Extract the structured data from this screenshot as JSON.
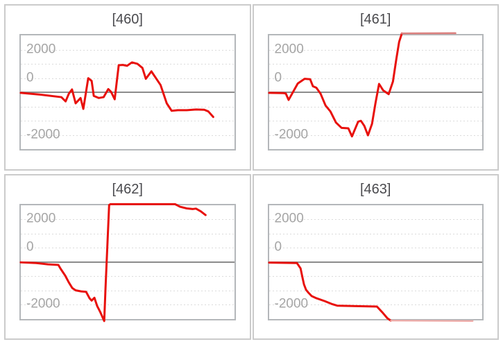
{
  "page": {
    "background": "#ffffff"
  },
  "palette": {
    "series": "#e8100c",
    "series_faded": "#db807e",
    "series_light": "#efaaa7",
    "zero_line": "#8c8c8c",
    "gridline": "#dbdbdb",
    "plot_border": "#b4b7ba",
    "panel_border": "#cbcbcb",
    "tick_label": "#a5a5a5",
    "title": "#4a4a4e"
  },
  "axis": {
    "y_ticks": [
      "2000",
      "0",
      "-2000"
    ],
    "y_tick_values": [
      2000,
      0,
      -2000
    ],
    "tick_line_index": [
      1,
      3,
      7
    ],
    "gridline_count": 7,
    "zero_line_index": 4,
    "y_display_range": [
      -2700,
      2700
    ],
    "grid": "dashed-horizontal",
    "x_labels": "none"
  },
  "chart_data": [
    {
      "type": "line",
      "title": "[460]",
      "y_ticks": [
        2000,
        0,
        -2000
      ],
      "segments": [
        {
          "tone": "main",
          "points": [
            [
              0,
              -30
            ],
            [
              0.09,
              -110
            ],
            [
              0.19,
              -230
            ],
            [
              0.21,
              -430
            ],
            [
              0.225,
              -70
            ],
            [
              0.24,
              130
            ],
            [
              0.257,
              -520
            ],
            [
              0.28,
              -270
            ],
            [
              0.293,
              -780
            ],
            [
              0.316,
              660
            ],
            [
              0.332,
              530
            ],
            [
              0.342,
              -170
            ],
            [
              0.365,
              -270
            ],
            [
              0.388,
              -230
            ],
            [
              0.41,
              150
            ],
            [
              0.423,
              20
            ],
            [
              0.44,
              -330
            ],
            [
              0.459,
              1270
            ],
            [
              0.479,
              1280
            ],
            [
              0.498,
              1240
            ],
            [
              0.521,
              1400
            ],
            [
              0.547,
              1330
            ],
            [
              0.57,
              1140
            ],
            [
              0.586,
              630
            ],
            [
              0.612,
              980
            ],
            [
              0.655,
              340
            ],
            [
              0.684,
              -520
            ],
            [
              0.707,
              -870
            ],
            [
              0.736,
              -840
            ],
            [
              0.778,
              -840
            ],
            [
              0.821,
              -810
            ],
            [
              0.86,
              -820
            ],
            [
              0.879,
              -900
            ],
            [
              0.902,
              -1160
            ]
          ]
        }
      ]
    },
    {
      "type": "line",
      "title": "[461]",
      "y_ticks": [
        2000,
        0,
        -2000
      ],
      "segments": [
        {
          "tone": "main",
          "points": [
            [
              0,
              -30
            ],
            [
              0.068,
              -40
            ],
            [
              0.078,
              -60
            ],
            [
              0.091,
              -360
            ],
            [
              0.134,
              410
            ],
            [
              0.166,
              630
            ],
            [
              0.192,
              610
            ],
            [
              0.205,
              280
            ],
            [
              0.221,
              210
            ],
            [
              0.241,
              -70
            ],
            [
              0.264,
              -620
            ],
            [
              0.287,
              -900
            ],
            [
              0.313,
              -1420
            ],
            [
              0.339,
              -1670
            ],
            [
              0.371,
              -1690
            ],
            [
              0.388,
              -2070
            ],
            [
              0.417,
              -1380
            ],
            [
              0.43,
              -1340
            ],
            [
              0.446,
              -1580
            ],
            [
              0.463,
              -2020
            ],
            [
              0.482,
              -1480
            ],
            [
              0.498,
              -520
            ],
            [
              0.515,
              390
            ],
            [
              0.534,
              90
            ],
            [
              0.56,
              -90
            ],
            [
              0.58,
              500
            ],
            [
              0.596,
              1560
            ],
            [
              0.609,
              2360
            ],
            [
              0.622,
              2760
            ]
          ]
        },
        {
          "tone": "faded",
          "points": [
            [
              0.622,
              2760
            ],
            [
              0.873,
              2770
            ]
          ]
        }
      ]
    },
    {
      "type": "line",
      "title": "[462]",
      "y_ticks": [
        2000,
        0,
        -2000
      ],
      "segments": [
        {
          "tone": "main",
          "points": [
            [
              0,
              -10
            ],
            [
              0.072,
              -40
            ],
            [
              0.127,
              -100
            ],
            [
              0.176,
              -130
            ],
            [
              0.186,
              -300
            ],
            [
              0.208,
              -630
            ],
            [
              0.225,
              -950
            ],
            [
              0.241,
              -1210
            ],
            [
              0.257,
              -1320
            ],
            [
              0.283,
              -1370
            ],
            [
              0.306,
              -1390
            ],
            [
              0.322,
              -1690
            ],
            [
              0.332,
              -1800
            ],
            [
              0.345,
              -1670
            ],
            [
              0.358,
              -2060
            ],
            [
              0.371,
              -2310
            ],
            [
              0.391,
              -2760
            ],
            [
              0.397,
              -1220
            ],
            [
              0.414,
              2680
            ],
            [
              0.42,
              2720
            ],
            [
              0.723,
              2720
            ],
            [
              0.746,
              2600
            ],
            [
              0.778,
              2520
            ],
            [
              0.805,
              2490
            ],
            [
              0.821,
              2510
            ],
            [
              0.844,
              2380
            ],
            [
              0.866,
              2210
            ]
          ]
        }
      ]
    },
    {
      "type": "line",
      "title": "[463]",
      "y_ticks": [
        2000,
        0,
        -2000
      ],
      "segments": [
        {
          "tone": "main",
          "points": [
            [
              0,
              -20
            ],
            [
              0.13,
              -40
            ],
            [
              0.147,
              -290
            ],
            [
              0.156,
              -720
            ],
            [
              0.163,
              -1040
            ],
            [
              0.173,
              -1300
            ],
            [
              0.182,
              -1410
            ],
            [
              0.199,
              -1590
            ],
            [
              0.221,
              -1690
            ],
            [
              0.261,
              -1830
            ],
            [
              0.296,
              -1970
            ],
            [
              0.319,
              -2040
            ],
            [
              0.505,
              -2080
            ],
            [
              0.531,
              -2360
            ],
            [
              0.554,
              -2630
            ],
            [
              0.57,
              -2740
            ]
          ]
        },
        {
          "tone": "light",
          "points": [
            [
              0.57,
              -2740
            ],
            [
              0.954,
              -2760
            ]
          ]
        }
      ]
    }
  ]
}
